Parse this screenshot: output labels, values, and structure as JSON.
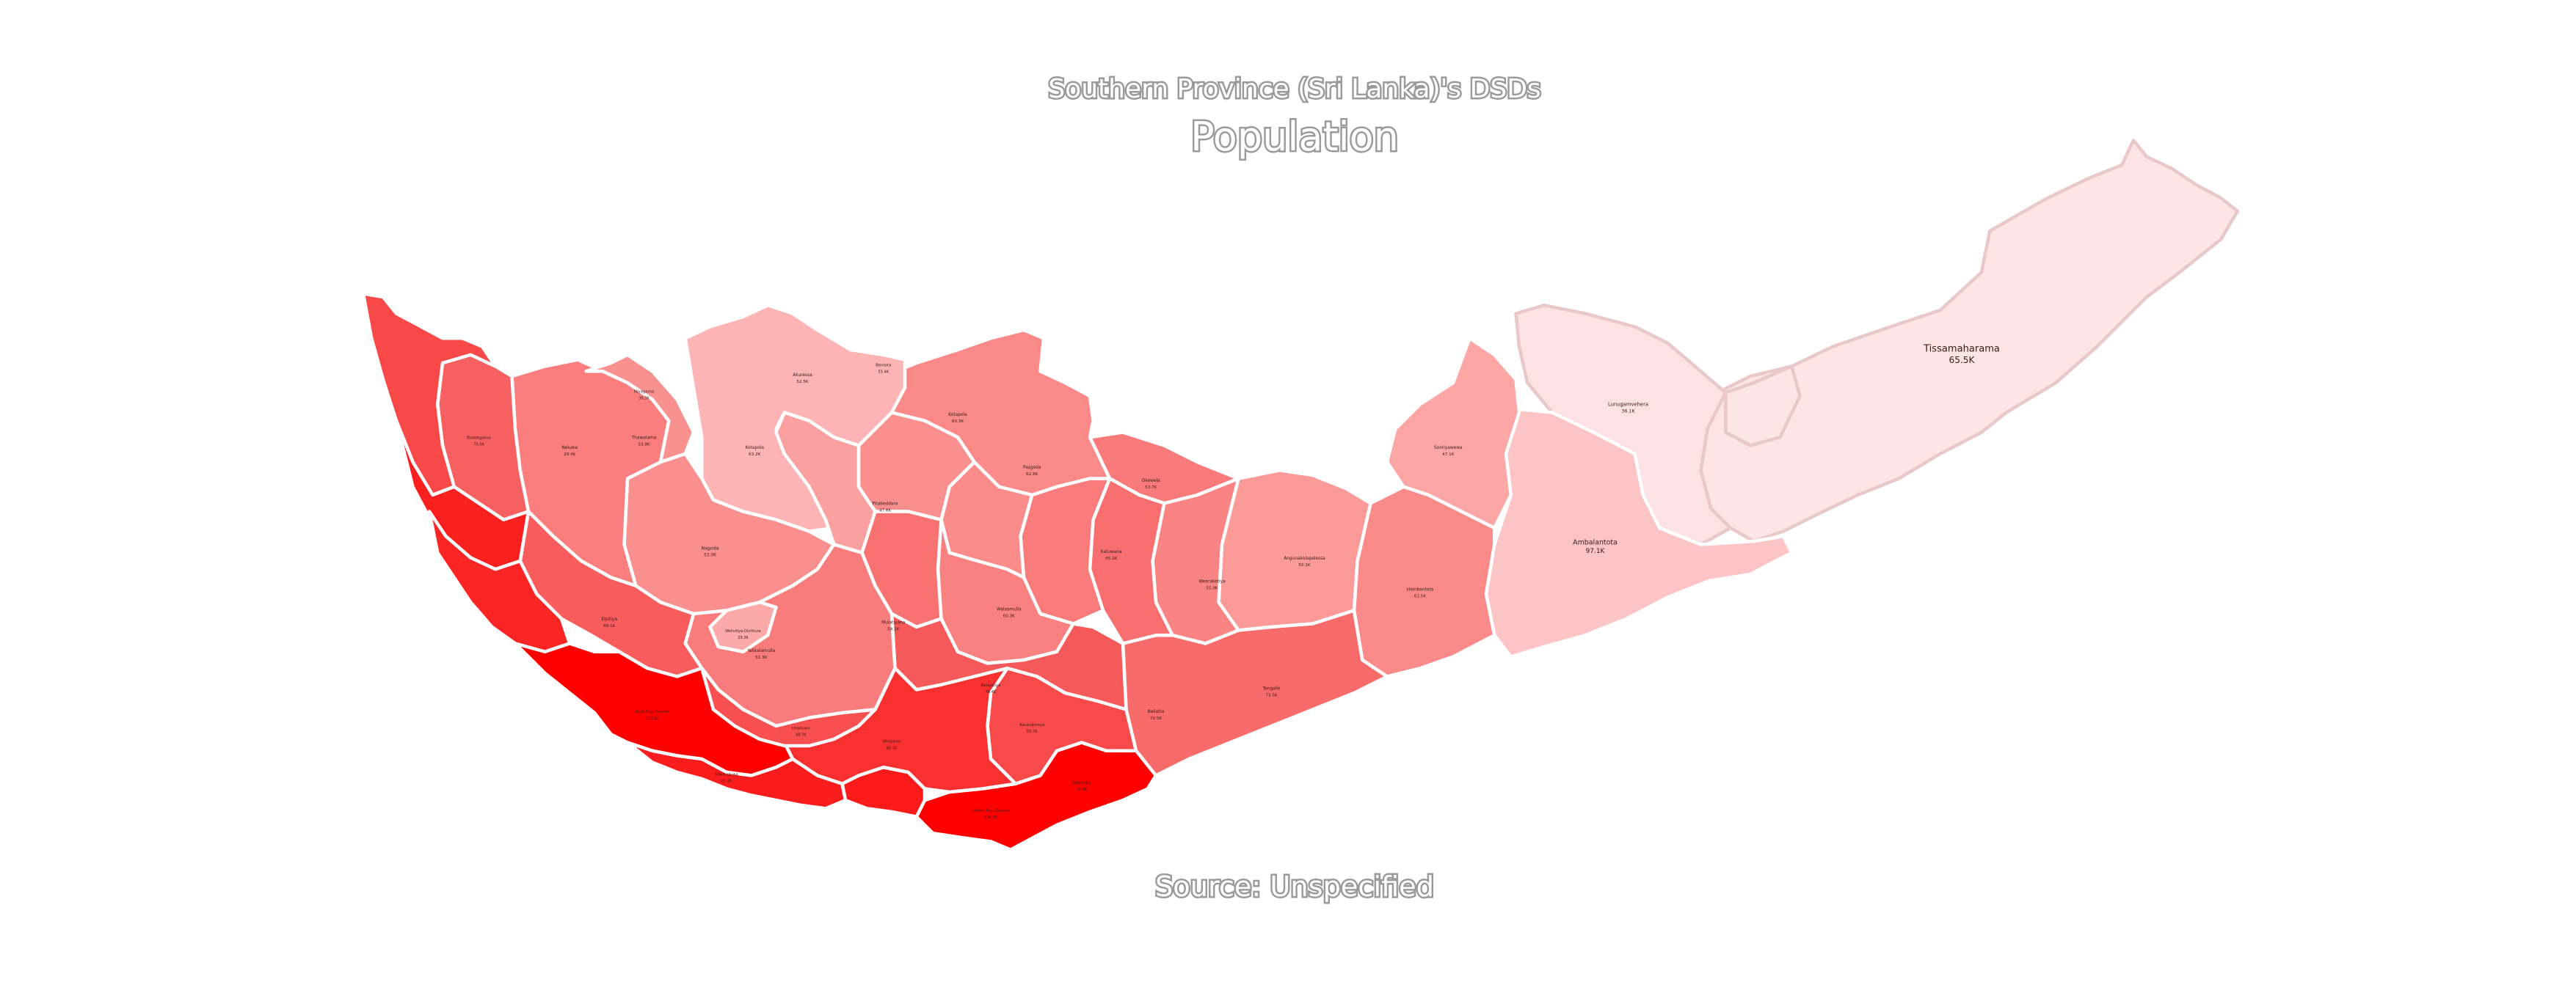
{
  "header": {
    "subtitle": "Southern Province (Sri Lanka)'s DSDs",
    "title": "Population"
  },
  "footer": {
    "source": "Source: Unspecified"
  },
  "colors": {
    "scale_low": "#fce4e4",
    "scale_high": "#ff0000",
    "text_outline": "#9a9a9a"
  },
  "map_labels": [
    {
      "key": "thissa",
      "name": "Tissamaharama",
      "value": "65.5K",
      "size": "big"
    },
    {
      "key": "ambalantota",
      "name": "Ambalantota",
      "value": "97.1K",
      "size": "mid"
    },
    {
      "key": "lunugamvehera",
      "name": "Lunugamvehera",
      "value": "36.1K",
      "size": "sm"
    },
    {
      "key": "sooriyawewa",
      "name": "Sooriyawewa",
      "value": "47.1K",
      "size": "sm"
    },
    {
      "key": "angunakolapelessa",
      "name": "Angunakolapelessa",
      "value": "50.1K",
      "size": "sm"
    },
    {
      "key": "weeraketiya",
      "name": "Weeraketiya",
      "value": "55.9K",
      "size": "sm"
    },
    {
      "key": "okewela",
      "name": "Okewela",
      "value": "53.7K",
      "size": "sm"
    },
    {
      "key": "hambantota",
      "name": "Hambantota",
      "value": "62.5K",
      "size": "sm"
    },
    {
      "key": "tangalle",
      "name": "Tangalle",
      "value": "73.5K",
      "size": "sm"
    },
    {
      "key": "katuwana",
      "name": "Katuwana",
      "value": "65.2K",
      "size": "sm"
    },
    {
      "key": "walasmulla",
      "name": "Walasmulla",
      "value": "60.3K",
      "size": "sm"
    },
    {
      "key": "beliatta",
      "name": "Beliatta",
      "value": "70.5K",
      "size": "sm"
    },
    {
      "key": "kotapola",
      "name": "Kotapola",
      "value": "60.3K",
      "size": "sm"
    },
    {
      "key": "pasgoda",
      "name": "Pasgoda",
      "value": "62.8K",
      "size": "sm"
    },
    {
      "key": "mulatiyana",
      "name": "Mulatiyana",
      "value": "59.2K",
      "size": "sm"
    },
    {
      "key": "pitabeddara",
      "name": "Pitabeddara",
      "value": "47.6K",
      "size": "sm"
    },
    {
      "key": "akuressa",
      "name": "Akuressa",
      "value": "52.5K",
      "size": "sm"
    },
    {
      "key": "kotapola2",
      "name": "Kotapola",
      "value": "63.2K",
      "size": "sm"
    },
    {
      "key": "neluwa",
      "name": "Neluwa",
      "value": "29.4K",
      "size": "sm"
    },
    {
      "key": "thawalama",
      "name": "Thawalama",
      "value": "33.8K",
      "size": "sm"
    },
    {
      "key": "nagoda",
      "name": "Nagoda",
      "value": "53.0K",
      "size": "sm"
    },
    {
      "key": "yakkalamulla",
      "name": "Yakkalamulla",
      "value": "51.3K",
      "size": "sm"
    },
    {
      "key": "elpitiya",
      "name": "Elpitiya",
      "value": "69.1K",
      "size": "sm"
    },
    {
      "key": "niyagama",
      "name": "Niyagama",
      "value": "38.3K",
      "size": "sm"
    },
    {
      "key": "baddegama",
      "name": "Baddegama",
      "value": "75.0K",
      "size": "sm"
    },
    {
      "key": "bentota",
      "name": "Bentota",
      "value": "55.4K",
      "size": "sm"
    },
    {
      "key": "balapitiya",
      "name": "Balapitiya",
      "value": "76.4K",
      "size": "sm"
    },
    {
      "key": "karandeniya",
      "name": "Karandeniya",
      "value": "65.7K",
      "size": "sm"
    },
    {
      "key": "welivitiya",
      "name": "Welivitiya-Divithura",
      "value": "29.3K",
      "size": "sm"
    },
    {
      "key": "imaduwa",
      "name": "Imaduwa",
      "value": "48.7K",
      "size": "sm"
    },
    {
      "key": "habaraduwa",
      "name": "Habaraduwa",
      "value": "81.2K",
      "size": "sm"
    },
    {
      "key": "galle",
      "name": "Galle Four Gravets",
      "value": "101.1K",
      "size": "sm"
    },
    {
      "key": "weligama",
      "name": "Weligama",
      "value": "86.1K",
      "size": "sm"
    },
    {
      "key": "matara",
      "name": "Matara Four Gravets",
      "value": "114.5K",
      "size": "sm"
    },
    {
      "key": "dickwella",
      "name": "Dickwella",
      "value": "72.9K",
      "size": "sm"
    }
  ]
}
